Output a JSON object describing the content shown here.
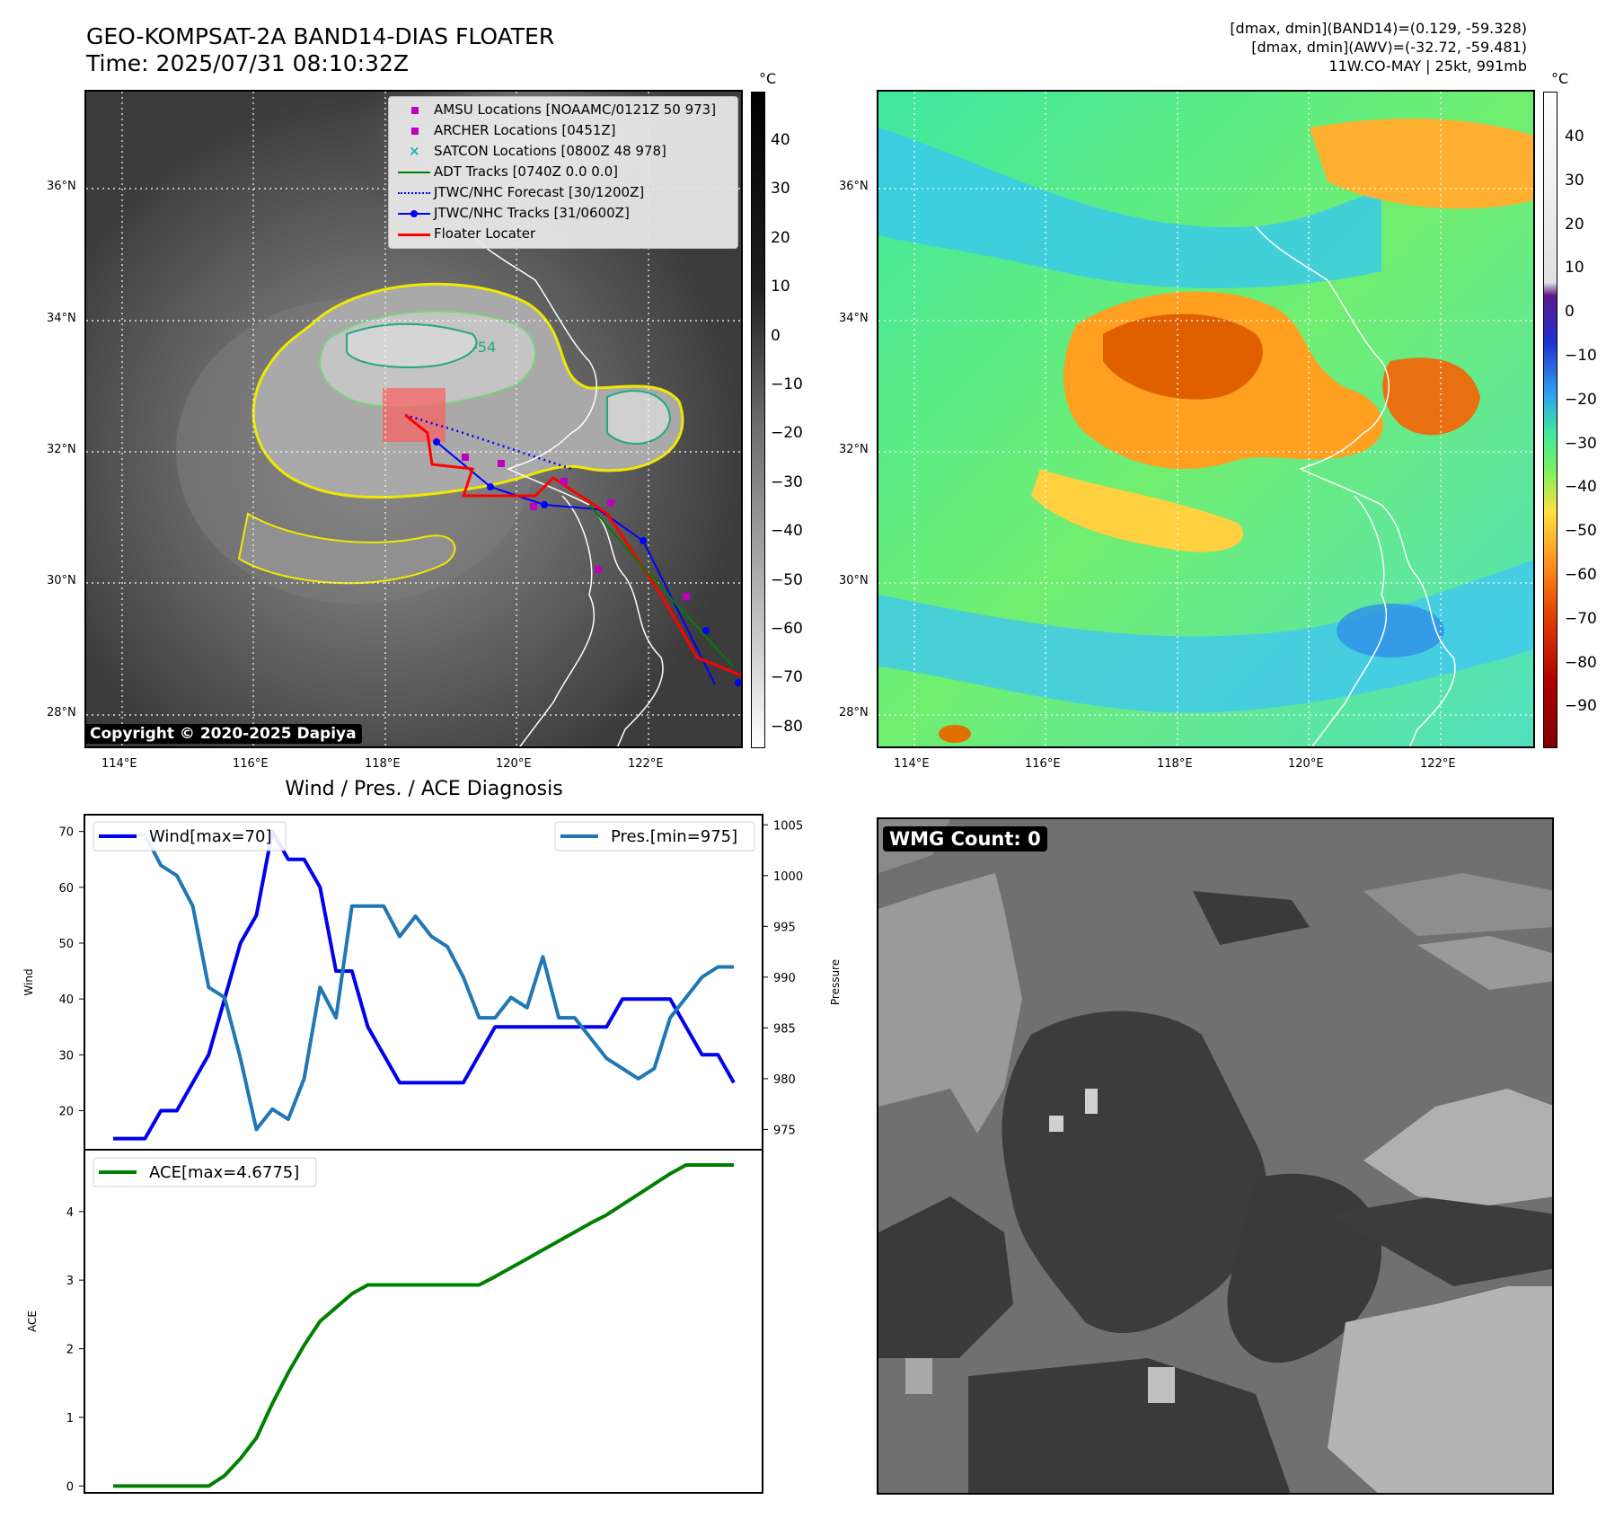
{
  "header": {
    "title": "GEO-KOMPSAT-2A BAND14-DIAS FLOATER",
    "time": "Time: 2025/07/31 08:10:32Z",
    "stats": [
      "[dmax, dmin](BAND14)=(0.129, -59.328)",
      "[dmax, dmin](AWV)=(-32.72, -59.481)",
      "11W.CO-MAY | 25kt, 991mb"
    ]
  },
  "ir_map": {
    "lat_labels": [
      "36°N",
      "34°N",
      "32°N",
      "30°N",
      "28°N"
    ],
    "lon_labels": [
      "114°E",
      "116°E",
      "118°E",
      "120°E",
      "122°E"
    ],
    "copyright": "Copyright © 2020-2025 Dapiya",
    "contour_label": "-54",
    "legend": [
      {
        "label": "AMSU Locations [NOAAMC/0121Z 50 973]",
        "symbol": "square",
        "color": "#c000c0"
      },
      {
        "label": "ARCHER Locations [0451Z]",
        "symbol": "square",
        "color": "#c000c0"
      },
      {
        "label": "SATCON Locations [0800Z 48 978]",
        "symbol": "x",
        "color": "#20b0b0"
      },
      {
        "label": "ADT Tracks [0740Z 0.0 0.0]",
        "symbol": "line",
        "color": "#008000"
      },
      {
        "label": "JTWC/NHC Forecast [30/1200Z]",
        "symbol": "dotted",
        "color": "#0000ff"
      },
      {
        "label": "JTWC/NHC Tracks [31/0600Z]",
        "symbol": "line-dot",
        "color": "#0000ff"
      },
      {
        "label": "Floater Locater",
        "symbol": "line",
        "color": "#ff0000"
      }
    ],
    "colorbar": {
      "unit": "°C",
      "ticks": [
        "40",
        "30",
        "20",
        "10",
        "0",
        "−10",
        "−20",
        "−30",
        "−40",
        "−50",
        "−60",
        "−70",
        "−80"
      ]
    }
  },
  "wv_map": {
    "lat_labels": [
      "36°N",
      "34°N",
      "32°N",
      "30°N",
      "28°N"
    ],
    "lon_labels": [
      "114°E",
      "116°E",
      "118°E",
      "120°E",
      "122°E"
    ],
    "colorbar": {
      "unit": "°C",
      "ticks": [
        "40",
        "30",
        "20",
        "10",
        "0",
        "−10",
        "−20",
        "−30",
        "−40",
        "−50",
        "−60",
        "−70",
        "−80",
        "−90"
      ]
    }
  },
  "wmg": {
    "label": "WMG Count: 0"
  },
  "chart_data": [
    {
      "type": "line",
      "title": "Wind / Pres. / ACE Diagnosis",
      "ylabel": "Wind",
      "ylabel_right": "Pressure",
      "ylim": [
        13,
        73
      ],
      "ylim_right": [
        973,
        1006
      ],
      "yticks": [
        20,
        30,
        40,
        50,
        60,
        70
      ],
      "yticks_right": [
        975,
        980,
        985,
        990,
        995,
        1000,
        1005
      ],
      "x": [
        0,
        1,
        2,
        3,
        4,
        5,
        6,
        7,
        8,
        9,
        10,
        11,
        12,
        13,
        14,
        15,
        16,
        17,
        18,
        19,
        20,
        21,
        22,
        23,
        24,
        25,
        26,
        27,
        28,
        29,
        30,
        31,
        32,
        33,
        34,
        35,
        36,
        37,
        38,
        39
      ],
      "series": [
        {
          "name": "Wind[max=70]",
          "axis": "left",
          "color": "#0000ee",
          "values": [
            15,
            15,
            15,
            20,
            20,
            25,
            30,
            40,
            50,
            55,
            70,
            65,
            65,
            60,
            45,
            45,
            35,
            30,
            25,
            25,
            25,
            25,
            25,
            30,
            35,
            35,
            35,
            35,
            35,
            35,
            35,
            35,
            40,
            40,
            40,
            40,
            35,
            30,
            30,
            25
          ]
        },
        {
          "name": "Pres.[min=975]",
          "axis": "right",
          "color": "#1f77b4",
          "values": [
            1004,
            1004,
            1004,
            1001,
            1000,
            997,
            989,
            988,
            982,
            975,
            977,
            976,
            980,
            989,
            986,
            997,
            997,
            997,
            994,
            996,
            994,
            993,
            990,
            986,
            986,
            988,
            987,
            992,
            986,
            986,
            984,
            982,
            981,
            980,
            981,
            986,
            988,
            990,
            991,
            991
          ]
        }
      ]
    },
    {
      "type": "line",
      "ylabel": "ACE",
      "ylim": [
        -0.1,
        4.9
      ],
      "yticks": [
        0,
        1,
        2,
        3,
        4
      ],
      "x": [
        0,
        1,
        2,
        3,
        4,
        5,
        6,
        7,
        8,
        9,
        10,
        11,
        12,
        13,
        14,
        15,
        16,
        17,
        18,
        19,
        20,
        21,
        22,
        23,
        24,
        25,
        26,
        27,
        28,
        29,
        30,
        31,
        32,
        33,
        34,
        35,
        36,
        37,
        38,
        39
      ],
      "series": [
        {
          "name": "ACE[max=4.6775]",
          "color": "#008000",
          "values": [
            0,
            0,
            0,
            0,
            0,
            0,
            0,
            0.15,
            0.4,
            0.7,
            1.2,
            1.65,
            2.05,
            2.4,
            2.6,
            2.8,
            2.93,
            2.93,
            2.93,
            2.93,
            2.93,
            2.93,
            2.93,
            2.93,
            3.05,
            3.18,
            3.31,
            3.44,
            3.57,
            3.7,
            3.83,
            3.95,
            4.1,
            4.25,
            4.4,
            4.55,
            4.6775,
            4.6775,
            4.6775,
            4.6775
          ]
        }
      ]
    }
  ]
}
